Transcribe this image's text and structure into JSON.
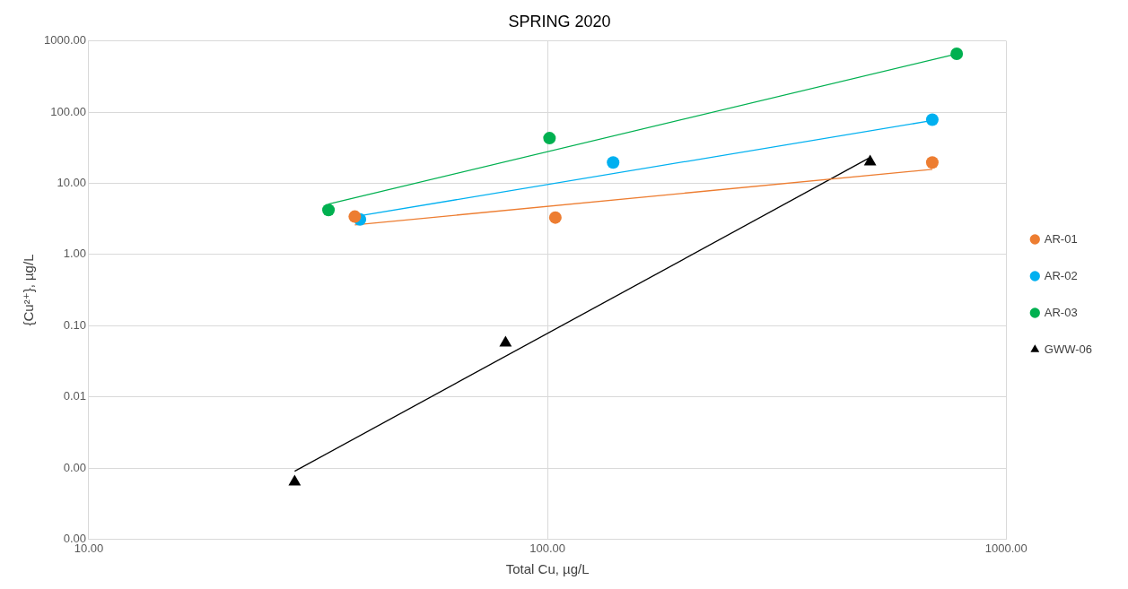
{
  "chart_data": {
    "type": "scatter",
    "title": "SPRING 2020",
    "xlabel": "Total Cu, µg/L",
    "ylabel": "{Cu²⁺}, µg/L",
    "log": "xy",
    "grid": true,
    "legend": "right",
    "xlim": [
      10,
      1000
    ],
    "xticks": [
      {
        "value": 10,
        "label": "10.00"
      },
      {
        "value": 100,
        "label": "100.00"
      },
      {
        "value": 1000,
        "label": "1000.00"
      }
    ],
    "ylim": [
      0.0001,
      1000
    ],
    "yticks": [
      {
        "value": 0.0001,
        "label": "0.00"
      },
      {
        "value": 0.001,
        "label": "0.00"
      },
      {
        "value": 0.01,
        "label": "0.01"
      },
      {
        "value": 0.1,
        "label": "0.10"
      },
      {
        "value": 1,
        "label": "1.00"
      },
      {
        "value": 10,
        "label": "10.00"
      },
      {
        "value": 100,
        "label": "100.00"
      },
      {
        "value": 1000,
        "label": "1000.00"
      }
    ],
    "series": [
      {
        "name": "AR-01",
        "marker": "circle",
        "color": "#ed7d31",
        "x": [
          38,
          104,
          690
        ],
        "values": [
          3.4,
          3.3,
          19.6
        ]
      },
      {
        "name": "AR-02",
        "marker": "circle",
        "color": "#00b0f0",
        "x": [
          39,
          139,
          690
        ],
        "values": [
          3.1,
          19.6,
          78
        ]
      },
      {
        "name": "AR-03",
        "marker": "circle",
        "color": "#00b050",
        "x": [
          33.3,
          101,
          780
        ],
        "values": [
          4.2,
          43,
          660
        ]
      },
      {
        "name": "GWW-06",
        "marker": "triangle",
        "color": "#000000",
        "x": [
          28.1,
          81,
          505
        ],
        "values": [
          0.00064,
          0.057,
          20
        ]
      },
      {
        "type": "line",
        "marker": "none",
        "line_style": "solid",
        "color": "#ed7d31",
        "x": [
          38,
          690
        ],
        "values": [
          2.6,
          15.7
        ]
      },
      {
        "type": "line",
        "marker": "none",
        "line_style": "solid",
        "color": "#00b0f0",
        "x": [
          39,
          690
        ],
        "values": [
          3.5,
          76
        ]
      },
      {
        "type": "line",
        "marker": "none",
        "line_style": "solid",
        "color": "#00b050",
        "x": [
          33.3,
          780
        ],
        "values": [
          5.1,
          655
        ]
      },
      {
        "type": "line",
        "marker": "none",
        "line_style": "solid",
        "color": "#000000",
        "x": [
          28.1,
          505
        ],
        "values": [
          0.0009,
          23
        ]
      }
    ]
  }
}
